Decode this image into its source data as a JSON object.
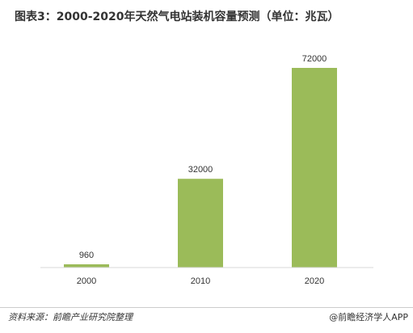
{
  "title": "图表3：2000-2020年天然气电站装机容量预测（单位：兆瓦）",
  "source": "资料来源：前瞻产业研究院整理",
  "brand": "@前瞻经济学人APP",
  "colors": {
    "bar": "#9bbb59",
    "text": "#333333",
    "axis": "#d9d9d9"
  },
  "chart_data": {
    "type": "bar",
    "title": "图表3：2000-2020年天然气电站装机容量预测（单位：兆瓦）",
    "categories": [
      "2000",
      "2010",
      "2020"
    ],
    "values": [
      960,
      32000,
      72000
    ],
    "data_labels": [
      "960",
      "32000",
      "72000"
    ],
    "xlabel": "",
    "ylabel": "",
    "ylim": [
      0,
      72000
    ],
    "grid": false,
    "legend": "none"
  }
}
